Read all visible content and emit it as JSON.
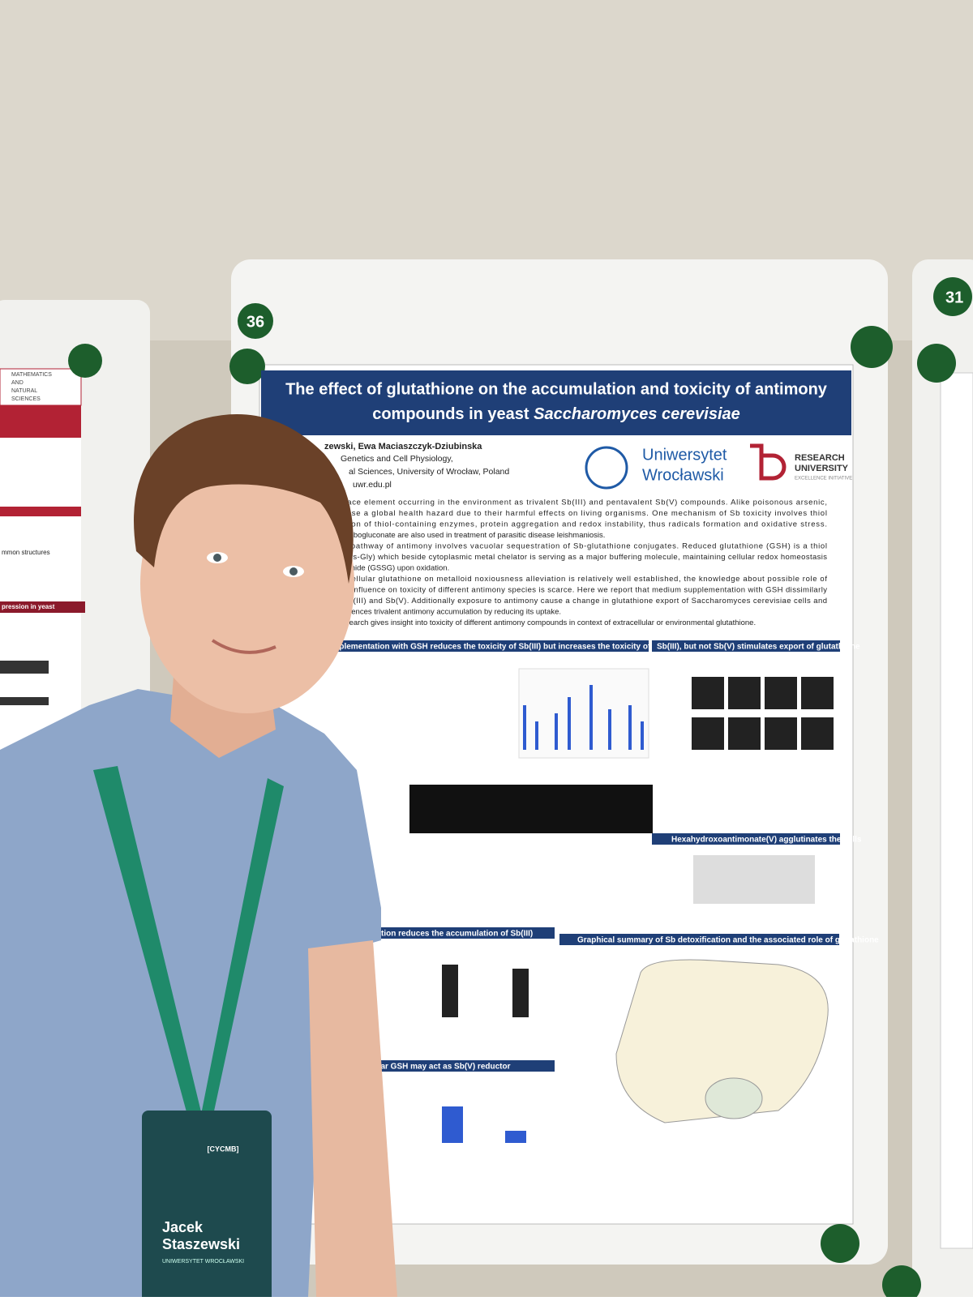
{
  "poster": {
    "number": "36",
    "title_main": "The effect of glutathione on the accumulation and toxicity of antimony",
    "title_line2": "compounds in yeast",
    "title_species": "Saccharomyces cerevisiae",
    "authors": "zewski, Ewa Maciaszczyk-Dziubinska",
    "affiliation": [
      "Genetics and Cell Physiology,",
      "al Sciences, University of Wrocław, Poland",
      "uwr.edu.pl"
    ],
    "logo_university": [
      "Uniwersytet",
      "Wrocławski"
    ],
    "logo_research": [
      "RESEARCH",
      "UNIVERSITY",
      "EXCELLENCE INITIATIVE"
    ],
    "intro": [
      "is a trace element occurring in the environment as trivalent Sb(III) and pentavalent Sb(V) compounds. Alike poisonous arsenic,",
      "rms pose a global health hazard due to their harmful effects on living organisms. One mechanism of Sb toxicity involves thiol",
      "inhibition of thiol-containing enzymes, protein aggregation and redox instability, thus radicals formation and oxidative stress.",
      "ls like stibogluconate are also used in treatment of parasitic disease leishmaniosis.",
      "cation pathway of antimony involves vacuolar sequestration of Sb-glutathione conjugates. Reduced glutathione (GSH) is a thiol",
      "(Glu-Cys-Gly) which beside cytoplasmic metal chelator is serving as a major buffering molecule, maintaining cellular redox homeostasis",
      "e disulphide (GSSG) upon oxidation.",
      "f intracellular glutathione on metalloid noxiousness alleviation is relatively well established, the knowledge about possible role of",
      "and its influence on toxicity of different antimony species is scarce. Here we report that medium supplementation with GSH dissimilarly",
      "ty of Sb(III) and Sb(V). Additionally exposure to antimony cause a change in glutathione export of Saccharomyces cerevisiae cells and",
      "SH influences trivalent antimony accumulation by reducing its uptake.",
      "this research gives insight into toxicity of different antimony compounds in context of extracellular or environmental glutathione."
    ],
    "sections": [
      "ium supplementation with GSH reduces the toxicity of Sb(III) but increases the toxicity of Sb(V) forms",
      "Sb(III), but not Sb(V) stimulates export of glutathione",
      "Hexahydroxoantimonate(V) agglutinates the cells",
      "ntation reduces the accumulation of Sb(III)",
      "Graphical summary of Sb detoxification and the associated role of glutathione",
      "llular GSH may act as Sb(V) reductor"
    ]
  },
  "left_poster": {
    "header": [
      "MATHEMATICS",
      "AND",
      "NATURAL",
      "SCIENCES"
    ],
    "sections": [
      "mmon structures",
      "pression in yeast"
    ]
  },
  "right_poster": {
    "number": "31"
  },
  "badge": {
    "event": "[CYCMB]",
    "name": [
      "Jacek",
      "Staszewski"
    ],
    "institution": "UNIWERSYTET WROCŁAWSKI"
  }
}
